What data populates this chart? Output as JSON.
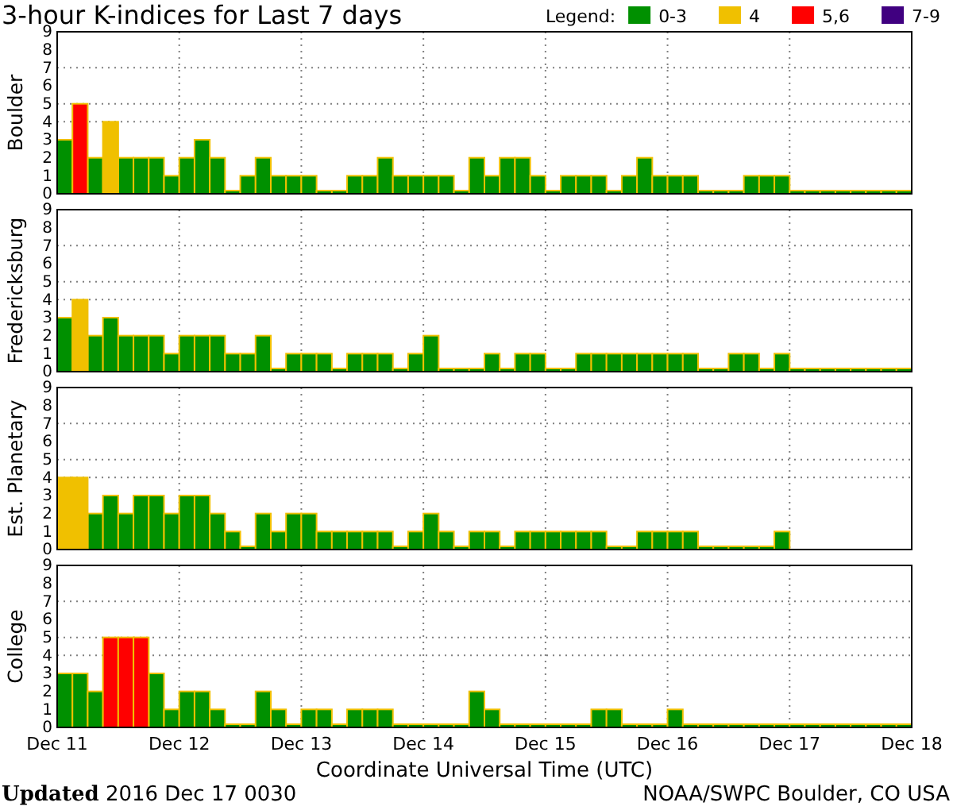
{
  "chart_data": [
    {
      "type": "bar",
      "title": "3-hour K-indices for Last 7 days",
      "ylabel": "Boulder",
      "legend_title": "Legend:",
      "legend": "top right",
      "grid": "x",
      "tick_labels": "y",
      "x": [
        "2016-12-11T01:30",
        "2016-12-11T04:30",
        "2016-12-11T07:30",
        "2016-12-11T10:30",
        "2016-12-11T13:30",
        "2016-12-11T16:30",
        "2016-12-11T19:30",
        "2016-12-11T22:30",
        "2016-12-12T01:30",
        "2016-12-12T04:30",
        "2016-12-12T07:30",
        "2016-12-12T10:30",
        "2016-12-12T13:30",
        "2016-12-12T16:30",
        "2016-12-12T19:30",
        "2016-12-12T22:30",
        "2016-12-13T01:30",
        "2016-12-13T04:30",
        "2016-12-13T07:30",
        "2016-12-13T10:30",
        "2016-12-13T13:30",
        "2016-12-13T16:30",
        "2016-12-13T19:30",
        "2016-12-13T22:30",
        "2016-12-14T01:30",
        "2016-12-14T04:30",
        "2016-12-14T07:30",
        "2016-12-14T10:30",
        "2016-12-14T13:30",
        "2016-12-14T16:30",
        "2016-12-14T19:30",
        "2016-12-14T22:30",
        "2016-12-15T01:30",
        "2016-12-15T04:30",
        "2016-12-15T07:30",
        "2016-12-15T10:30",
        "2016-12-15T13:30",
        "2016-12-15T16:30",
        "2016-12-15T19:30",
        "2016-12-15T22:30",
        "2016-12-16T01:30",
        "2016-12-16T04:30",
        "2016-12-16T07:30",
        "2016-12-16T10:30",
        "2016-12-16T13:30",
        "2016-12-16T16:30",
        "2016-12-16T19:30",
        "2016-12-16T22:30",
        "2016-12-17T01:30",
        "2016-12-17T04:30",
        "2016-12-17T07:30",
        "2016-12-17T10:30",
        "2016-12-17T13:30",
        "2016-12-17T16:30",
        "2016-12-17T19:30",
        "2016-12-17T22:30"
      ],
      "xlim": [
        "2016-12-11",
        "2016-12-18"
      ],
      "xticks": [
        "2016-12-11",
        "2016-12-12",
        "2016-12-13",
        "2016-12-14",
        "2016-12-15",
        "2016-12-16",
        "2016-12-17",
        "2016-12-18"
      ],
      "ylim": [
        0,
        9
      ],
      "yticks": [
        0,
        1,
        2,
        3,
        4,
        5,
        6,
        7,
        8,
        9
      ],
      "ref_lines": [
        {
          "axis": "y",
          "value": 4,
          "color": "#808080",
          "line_style": "dotted"
        },
        {
          "axis": "y",
          "value": 5,
          "color": "#808080",
          "line_style": "dotted"
        },
        {
          "axis": "y",
          "value": 7,
          "color": "#808080",
          "line_style": "dotted"
        }
      ],
      "series": [
        {
          "name": "0-3",
          "color": "#009000",
          "values": [
            3,
            null,
            2,
            null,
            2,
            2,
            2,
            1,
            2,
            3,
            2,
            0,
            1,
            2,
            1,
            1,
            1,
            0,
            0,
            1,
            1,
            2,
            1,
            1,
            1,
            1,
            0,
            2,
            1,
            2,
            2,
            1,
            0,
            1,
            1,
            1,
            0,
            1,
            2,
            1,
            1,
            1,
            0,
            0,
            0,
            1,
            1,
            1,
            0,
            0,
            0,
            0,
            0,
            0,
            0,
            0
          ]
        },
        {
          "name": "4",
          "color": "#f0c000",
          "values": [
            null,
            null,
            null,
            4,
            null,
            null,
            null,
            null,
            null,
            null,
            null,
            null,
            null,
            null,
            null,
            null,
            null,
            null,
            null,
            null,
            null,
            null,
            null,
            null,
            null,
            null,
            null,
            null,
            null,
            null,
            null,
            null,
            null,
            null,
            null,
            null,
            null,
            null,
            null,
            null,
            null,
            null,
            null,
            null,
            null,
            null,
            null,
            null,
            null,
            null,
            null,
            null,
            null,
            null,
            null,
            null
          ]
        },
        {
          "name": "5,6",
          "color": "#ff0000",
          "values": [
            null,
            5,
            null,
            null,
            null,
            null,
            null,
            null,
            null,
            null,
            null,
            null,
            null,
            null,
            null,
            null,
            null,
            null,
            null,
            null,
            null,
            null,
            null,
            null,
            null,
            null,
            null,
            null,
            null,
            null,
            null,
            null,
            null,
            null,
            null,
            null,
            null,
            null,
            null,
            null,
            null,
            null,
            null,
            null,
            null,
            null,
            null,
            null,
            null,
            null,
            null,
            null,
            null,
            null,
            null,
            null
          ]
        },
        {
          "name": "7-9",
          "color": "#400080",
          "values": [
            null,
            null,
            null,
            null,
            null,
            null,
            null,
            null,
            null,
            null,
            null,
            null,
            null,
            null,
            null,
            null,
            null,
            null,
            null,
            null,
            null,
            null,
            null,
            null,
            null,
            null,
            null,
            null,
            null,
            null,
            null,
            null,
            null,
            null,
            null,
            null,
            null,
            null,
            null,
            null,
            null,
            null,
            null,
            null,
            null,
            null,
            null,
            null,
            null,
            null,
            null,
            null,
            null,
            null,
            null,
            null
          ]
        }
      ]
    },
    {
      "type": "bar",
      "ylabel": "Fredericksburg",
      "grid": "x",
      "tick_labels": "y",
      "x": [
        "2016-12-11T01:30",
        "2016-12-11T04:30",
        "2016-12-11T07:30",
        "2016-12-11T10:30",
        "2016-12-11T13:30",
        "2016-12-11T16:30",
        "2016-12-11T19:30",
        "2016-12-11T22:30",
        "2016-12-12T01:30",
        "2016-12-12T04:30",
        "2016-12-12T07:30",
        "2016-12-12T10:30",
        "2016-12-12T13:30",
        "2016-12-12T16:30",
        "2016-12-12T19:30",
        "2016-12-12T22:30",
        "2016-12-13T01:30",
        "2016-12-13T04:30",
        "2016-12-13T07:30",
        "2016-12-13T10:30",
        "2016-12-13T13:30",
        "2016-12-13T16:30",
        "2016-12-13T19:30",
        "2016-12-13T22:30",
        "2016-12-14T01:30",
        "2016-12-14T04:30",
        "2016-12-14T07:30",
        "2016-12-14T10:30",
        "2016-12-14T13:30",
        "2016-12-14T16:30",
        "2016-12-14T19:30",
        "2016-12-14T22:30",
        "2016-12-15T01:30",
        "2016-12-15T04:30",
        "2016-12-15T07:30",
        "2016-12-15T10:30",
        "2016-12-15T13:30",
        "2016-12-15T16:30",
        "2016-12-15T19:30",
        "2016-12-15T22:30",
        "2016-12-16T01:30",
        "2016-12-16T04:30",
        "2016-12-16T07:30",
        "2016-12-16T10:30",
        "2016-12-16T13:30",
        "2016-12-16T16:30",
        "2016-12-16T19:30",
        "2016-12-16T22:30",
        "2016-12-17T01:30",
        "2016-12-17T04:30",
        "2016-12-17T07:30",
        "2016-12-17T10:30",
        "2016-12-17T13:30",
        "2016-12-17T16:30",
        "2016-12-17T19:30",
        "2016-12-17T22:30"
      ],
      "xlim": [
        "2016-12-11",
        "2016-12-18"
      ],
      "xticks": [
        "2016-12-11",
        "2016-12-12",
        "2016-12-13",
        "2016-12-14",
        "2016-12-15",
        "2016-12-16",
        "2016-12-17",
        "2016-12-18"
      ],
      "ylim": [
        0,
        9
      ],
      "yticks": [
        0,
        1,
        2,
        3,
        4,
        5,
        6,
        7,
        8,
        9
      ],
      "ref_lines": [
        {
          "axis": "y",
          "value": 4,
          "color": "#808080",
          "line_style": "dotted"
        },
        {
          "axis": "y",
          "value": 5,
          "color": "#808080",
          "line_style": "dotted"
        },
        {
          "axis": "y",
          "value": 7,
          "color": "#808080",
          "line_style": "dotted"
        }
      ],
      "series": [
        {
          "color": "#009000",
          "values": [
            3,
            null,
            2,
            3,
            2,
            2,
            2,
            1,
            2,
            2,
            2,
            1,
            1,
            2,
            0,
            1,
            1,
            1,
            0,
            1,
            1,
            1,
            0,
            1,
            2,
            0,
            0,
            0,
            1,
            0,
            1,
            1,
            0,
            0,
            1,
            1,
            1,
            1,
            1,
            1,
            1,
            1,
            0,
            0,
            1,
            1,
            0,
            1,
            0,
            0,
            0,
            0,
            0,
            0,
            0,
            0
          ]
        },
        {
          "color": "#f0c000",
          "values": [
            null,
            4,
            null,
            null,
            null,
            null,
            null,
            null,
            null,
            null,
            null,
            null,
            null,
            null,
            null,
            null,
            null,
            null,
            null,
            null,
            null,
            null,
            null,
            null,
            null,
            null,
            null,
            null,
            null,
            null,
            null,
            null,
            null,
            null,
            null,
            null,
            null,
            null,
            null,
            null,
            null,
            null,
            null,
            null,
            null,
            null,
            null,
            null,
            null,
            null,
            null,
            null,
            null,
            null,
            null,
            null
          ]
        }
      ]
    },
    {
      "type": "bar",
      "ylabel": "Est. Planetary",
      "grid": "x",
      "tick_labels": "y",
      "x": [
        "2016-12-11T01:30",
        "2016-12-11T04:30",
        "2016-12-11T07:30",
        "2016-12-11T10:30",
        "2016-12-11T13:30",
        "2016-12-11T16:30",
        "2016-12-11T19:30",
        "2016-12-11T22:30",
        "2016-12-12T01:30",
        "2016-12-12T04:30",
        "2016-12-12T07:30",
        "2016-12-12T10:30",
        "2016-12-12T13:30",
        "2016-12-12T16:30",
        "2016-12-12T19:30",
        "2016-12-12T22:30",
        "2016-12-13T01:30",
        "2016-12-13T04:30",
        "2016-12-13T07:30",
        "2016-12-13T10:30",
        "2016-12-13T13:30",
        "2016-12-13T16:30",
        "2016-12-13T19:30",
        "2016-12-13T22:30",
        "2016-12-14T01:30",
        "2016-12-14T04:30",
        "2016-12-14T07:30",
        "2016-12-14T10:30",
        "2016-12-14T13:30",
        "2016-12-14T16:30",
        "2016-12-14T19:30",
        "2016-12-14T22:30",
        "2016-12-15T01:30",
        "2016-12-15T04:30",
        "2016-12-15T07:30",
        "2016-12-15T10:30",
        "2016-12-15T13:30",
        "2016-12-15T16:30",
        "2016-12-15T19:30",
        "2016-12-15T22:30",
        "2016-12-16T01:30",
        "2016-12-16T04:30",
        "2016-12-16T07:30",
        "2016-12-16T10:30",
        "2016-12-16T13:30",
        "2016-12-16T16:30",
        "2016-12-16T19:30",
        "2016-12-16T22:30"
      ],
      "xlim": [
        "2016-12-11",
        "2016-12-18"
      ],
      "xticks": [
        "2016-12-11",
        "2016-12-12",
        "2016-12-13",
        "2016-12-14",
        "2016-12-15",
        "2016-12-16",
        "2016-12-17",
        "2016-12-18"
      ],
      "ylim": [
        0,
        9
      ],
      "yticks": [
        0,
        1,
        2,
        3,
        4,
        5,
        6,
        7,
        8,
        9
      ],
      "ref_lines": [
        {
          "axis": "y",
          "value": 4,
          "color": "#808080",
          "line_style": "dotted"
        },
        {
          "axis": "y",
          "value": 5,
          "color": "#808080",
          "line_style": "dotted"
        },
        {
          "axis": "y",
          "value": 7,
          "color": "#808080",
          "line_style": "dotted"
        }
      ],
      "series": [
        {
          "color": "#009000",
          "values": [
            null,
            null,
            2,
            3,
            2,
            3,
            3,
            2,
            3,
            3,
            2,
            1,
            0,
            2,
            1,
            2,
            2,
            1,
            1,
            1,
            1,
            1,
            0,
            1,
            2,
            1,
            0,
            1,
            1,
            0,
            1,
            1,
            1,
            1,
            1,
            1,
            0,
            0,
            1,
            1,
            1,
            1,
            0,
            0,
            0,
            0,
            0,
            1
          ]
        },
        {
          "color": "#f0c000",
          "values": [
            4,
            4,
            null,
            null,
            null,
            null,
            null,
            null,
            null,
            null,
            null,
            null,
            null,
            null,
            null,
            null,
            null,
            null,
            null,
            null,
            null,
            null,
            null,
            null,
            null,
            null,
            null,
            null,
            null,
            null,
            null,
            null,
            null,
            null,
            null,
            null,
            null,
            null,
            null,
            null,
            null,
            null,
            null,
            null,
            null,
            null,
            null,
            null
          ]
        }
      ]
    },
    {
      "type": "bar",
      "ylabel": "College",
      "xlabel": "Coordinate Universal Time (UTC)",
      "grid": "x",
      "x": [
        "2016-12-11T01:30",
        "2016-12-11T04:30",
        "2016-12-11T07:30",
        "2016-12-11T10:30",
        "2016-12-11T13:30",
        "2016-12-11T16:30",
        "2016-12-11T19:30",
        "2016-12-11T22:30",
        "2016-12-12T01:30",
        "2016-12-12T04:30",
        "2016-12-12T07:30",
        "2016-12-12T10:30",
        "2016-12-12T13:30",
        "2016-12-12T16:30",
        "2016-12-12T19:30",
        "2016-12-12T22:30",
        "2016-12-13T01:30",
        "2016-12-13T04:30",
        "2016-12-13T07:30",
        "2016-12-13T10:30",
        "2016-12-13T13:30",
        "2016-12-13T16:30",
        "2016-12-13T19:30",
        "2016-12-13T22:30",
        "2016-12-14T01:30",
        "2016-12-14T04:30",
        "2016-12-14T07:30",
        "2016-12-14T10:30",
        "2016-12-14T13:30",
        "2016-12-14T16:30",
        "2016-12-14T19:30",
        "2016-12-14T22:30",
        "2016-12-15T01:30",
        "2016-12-15T04:30",
        "2016-12-15T07:30",
        "2016-12-15T10:30",
        "2016-12-15T13:30",
        "2016-12-15T16:30",
        "2016-12-15T19:30",
        "2016-12-15T22:30",
        "2016-12-16T01:30",
        "2016-12-16T04:30",
        "2016-12-16T07:30",
        "2016-12-16T10:30",
        "2016-12-16T13:30",
        "2016-12-16T16:30",
        "2016-12-16T19:30",
        "2016-12-16T22:30",
        "2016-12-17T01:30",
        "2016-12-17T04:30",
        "2016-12-17T07:30",
        "2016-12-17T10:30",
        "2016-12-17T13:30",
        "2016-12-17T16:30",
        "2016-12-17T19:30",
        "2016-12-17T22:30"
      ],
      "xlim": [
        "2016-12-11",
        "2016-12-18"
      ],
      "xticks": [
        {
          "value": "2016-12-11",
          "label": "Dec 11"
        },
        {
          "value": "2016-12-12",
          "label": "Dec 12"
        },
        {
          "value": "2016-12-13",
          "label": "Dec 13"
        },
        {
          "value": "2016-12-14",
          "label": "Dec 14"
        },
        {
          "value": "2016-12-15",
          "label": "Dec 15"
        },
        {
          "value": "2016-12-16",
          "label": "Dec 16"
        },
        {
          "value": "2016-12-17",
          "label": "Dec 17"
        },
        {
          "value": "2016-12-18",
          "label": "Dec 18"
        }
      ],
      "ylim": [
        0,
        9
      ],
      "yticks": [
        0,
        1,
        2,
        3,
        4,
        5,
        6,
        7,
        8,
        9
      ],
      "ref_lines": [
        {
          "axis": "y",
          "value": 4,
          "color": "#808080",
          "line_style": "dotted"
        },
        {
          "axis": "y",
          "value": 5,
          "color": "#808080",
          "line_style": "dotted"
        },
        {
          "axis": "y",
          "value": 7,
          "color": "#808080",
          "line_style": "dotted"
        }
      ],
      "series": [
        {
          "color": "#009000",
          "values": [
            3,
            3,
            2,
            null,
            null,
            null,
            3,
            1,
            2,
            2,
            1,
            0,
            0,
            2,
            1,
            0,
            1,
            1,
            0,
            1,
            1,
            1,
            0,
            0,
            0,
            0,
            0,
            2,
            1,
            0,
            0,
            0,
            0,
            0,
            0,
            1,
            1,
            0,
            0,
            0,
            1,
            0,
            0,
            0,
            0,
            0,
            0,
            0,
            0,
            0,
            0,
            0,
            0,
            0,
            0,
            0
          ]
        },
        {
          "color": "#ff0000",
          "values": [
            null,
            null,
            null,
            5,
            5,
            5,
            null,
            null,
            null,
            null,
            null,
            null,
            null,
            null,
            null,
            null,
            null,
            null,
            null,
            null,
            null,
            null,
            null,
            null,
            null,
            null,
            null,
            null,
            null,
            null,
            null,
            null,
            null,
            null,
            null,
            null,
            null,
            null,
            null,
            null,
            null,
            null,
            null,
            null,
            null,
            null,
            null,
            null,
            null,
            null,
            null,
            null,
            null,
            null,
            null,
            null
          ]
        }
      ],
      "annotations": [
        "Updated 2016 Dec 17 0030",
        "NOAA/SWPC Boulder, CO USA"
      ]
    }
  ]
}
